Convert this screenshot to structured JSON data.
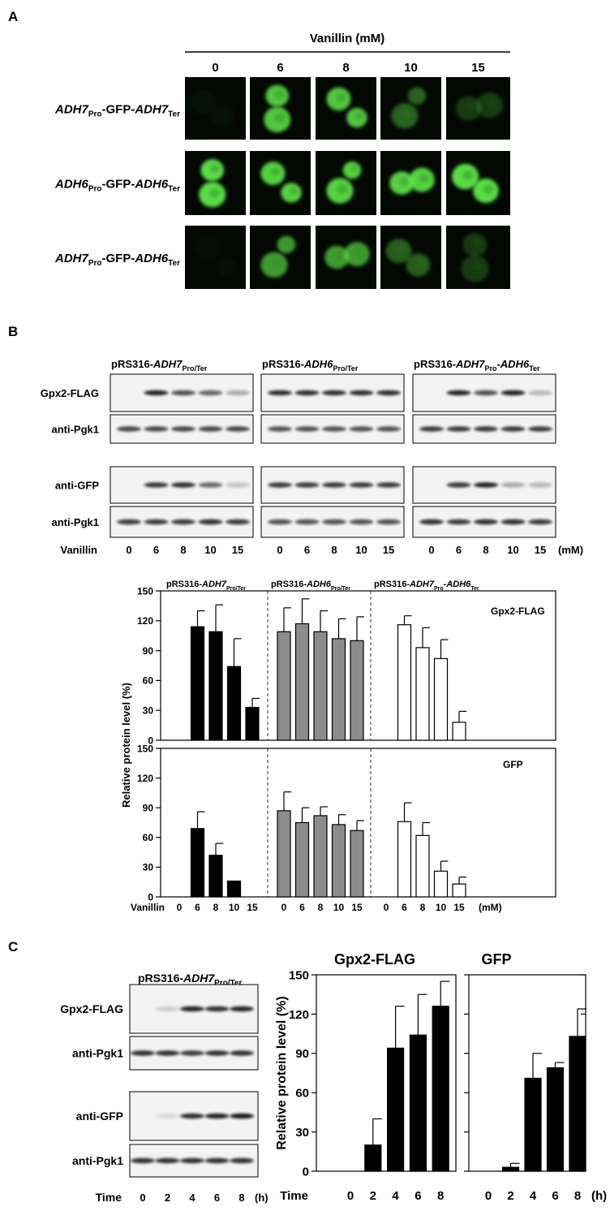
{
  "panel_labels": [
    "A",
    "B",
    "C"
  ],
  "panel_a": {
    "header": "Vanillin (mM)",
    "concentrations": [
      "0",
      "6",
      "8",
      "10",
      "15"
    ],
    "rows": [
      [
        "ADH7",
        "Pro",
        "-GFP-",
        "ADH7",
        "Ter"
      ],
      [
        "ADH6",
        "Pro",
        "-GFP-",
        "ADH6",
        "Ter"
      ],
      [
        "ADH7",
        "Pro",
        "-GFP-",
        "ADH6",
        "Ter"
      ]
    ]
  },
  "panel_b": {
    "constructs": [
      [
        "pRS316-",
        "ADH7",
        "Pro/Ter"
      ],
      [
        "pRS316-",
        "ADH6",
        "Pro/Ter"
      ],
      [
        "pRS316-",
        "ADH7",
        "Pro",
        "-",
        "ADH6",
        "Ter"
      ]
    ],
    "rows": [
      "Gpx2-FLAG",
      "anti-Pgk1",
      "anti-GFP",
      "anti-Pgk1"
    ],
    "lane_label": "Vanillin",
    "lanes": [
      "0",
      "6",
      "8",
      "10",
      "15"
    ],
    "unit": "(mM)"
  },
  "panel_c": {
    "rows": [
      "Gpx2-FLAG",
      "anti-Pgk1",
      "anti-GFP",
      "anti-Pgk1"
    ],
    "lane_label": "Time",
    "lanes": [
      "0",
      "2",
      "4",
      "6",
      "8"
    ],
    "unit": "(h)"
  },
  "chart_data": [
    {
      "type": "bar",
      "ylabel": "Relative protein level (%)",
      "annotation": "Gpx2-FLAG",
      "ylim": [
        0,
        150
      ],
      "yticks": [
        0,
        30,
        60,
        90,
        120,
        150
      ],
      "series": [
        {
          "color": "#000000",
          "values": [
            0,
            114,
            109,
            74,
            33
          ],
          "errors": [
            null,
            16,
            27,
            28,
            9
          ]
        },
        {
          "color": "#8c8c8c",
          "values": [
            109,
            117,
            109,
            102,
            100
          ],
          "errors": [
            24,
            25,
            21,
            20,
            24
          ]
        },
        {
          "color": "#ffffff",
          "values": [
            0,
            116,
            93,
            82,
            18
          ],
          "errors": [
            null,
            9,
            20,
            19,
            11
          ]
        }
      ]
    },
    {
      "type": "bar",
      "annotation": "GFP",
      "xlabel": "Vanillin",
      "xunit": "(mM)",
      "categories": [
        "0",
        "6",
        "8",
        "10",
        "15"
      ],
      "ylim": [
        0,
        150
      ],
      "yticks": [
        0,
        30,
        60,
        90,
        120,
        150
      ],
      "series": [
        {
          "color": "#000000",
          "values": [
            0,
            69,
            42,
            16,
            0
          ],
          "errors": [
            null,
            17,
            12,
            null,
            null
          ]
        },
        {
          "color": "#8c8c8c",
          "values": [
            87,
            75,
            82,
            73,
            67
          ],
          "errors": [
            19,
            15,
            9,
            10,
            10
          ]
        },
        {
          "color": "#ffffff",
          "values": [
            0,
            76,
            62,
            26,
            13
          ],
          "errors": [
            null,
            19,
            13,
            10,
            7
          ]
        }
      ]
    },
    {
      "type": "bar",
      "title": "Gpx2-FLAG",
      "ylabel": "Relative protein level (%)",
      "xlabel": "Time",
      "categories": [
        "0",
        "2",
        "4",
        "6",
        "8"
      ],
      "ylim": [
        0,
        150
      ],
      "yticks": [
        0,
        30,
        60,
        90,
        120,
        150
      ],
      "series": [
        {
          "color": "#000000",
          "values": [
            0,
            20,
            94,
            104,
            126
          ],
          "errors": [
            null,
            20,
            32,
            31,
            19
          ]
        }
      ]
    },
    {
      "type": "bar",
      "title": "GFP",
      "xunit": "(h)",
      "categories": [
        "0",
        "2",
        "4",
        "6",
        "8"
      ],
      "ylim": [
        0,
        150
      ],
      "yticks": [
        0,
        30,
        60,
        90,
        120,
        150
      ],
      "ytick_labels": false,
      "series": [
        {
          "color": "#000000",
          "values": [
            0,
            3,
            71,
            79,
            103
          ],
          "errors": [
            null,
            3,
            19,
            4,
            21
          ]
        }
      ]
    }
  ]
}
